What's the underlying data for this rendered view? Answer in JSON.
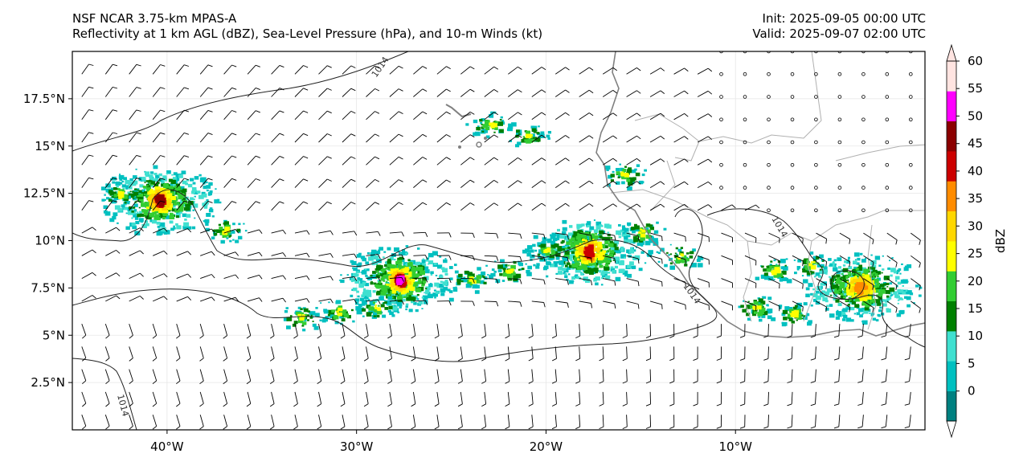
{
  "header": {
    "model": "NSF NCAR 3.75-km MPAS-A",
    "fields": "Reflectivity at 1 km AGL (dBZ), Sea-Level Pressure (hPa), and 10-m Winds (kt)",
    "init": "Init: 2025-09-05 00:00 UTC",
    "valid": "Valid: 2025-09-07 02:00 UTC"
  },
  "map": {
    "extent": {
      "lon": [
        -45,
        0
      ],
      "lat": [
        0,
        20
      ]
    },
    "lat_ticks": [
      {
        "value": 2.5,
        "label": "2.5°N"
      },
      {
        "value": 5,
        "label": "5°N"
      },
      {
        "value": 7.5,
        "label": "7.5°N"
      },
      {
        "value": 10,
        "label": "10°N"
      },
      {
        "value": 12.5,
        "label": "12.5°N"
      },
      {
        "value": 15,
        "label": "15°N"
      },
      {
        "value": 17.5,
        "label": "17.5°N"
      }
    ],
    "lon_ticks": [
      {
        "value": -40,
        "label": "40°W"
      },
      {
        "value": -30,
        "label": "30°W"
      },
      {
        "value": -20,
        "label": "20°W"
      },
      {
        "value": -10,
        "label": "10°W"
      }
    ],
    "isobar_label": "1014",
    "isobar_color": "#222222",
    "coast_color": "#808080",
    "border_color": "#b0b0b0",
    "storms": [
      {
        "lon": -40.5,
        "lat": 12.2,
        "core_dbz": 45
      },
      {
        "lon": -27.8,
        "lat": 8.0,
        "core_dbz": 50
      },
      {
        "lon": -17.8,
        "lat": 9.5,
        "core_dbz": 40
      },
      {
        "lon": -3.5,
        "lat": 7.6,
        "core_dbz": 35
      }
    ]
  },
  "colorbar": {
    "label": "dBZ",
    "ticks": [
      "0",
      "5",
      "10",
      "15",
      "20",
      "25",
      "30",
      "35",
      "40",
      "45",
      "50",
      "55",
      "60"
    ],
    "colors": [
      "#008080",
      "#00c0c0",
      "#40e0d0",
      "#008000",
      "#32cd32",
      "#ffff00",
      "#ffd700",
      "#ff8c00",
      "#cc0000",
      "#8b0000",
      "#ff00ff",
      "#ffe4e1"
    ]
  }
}
